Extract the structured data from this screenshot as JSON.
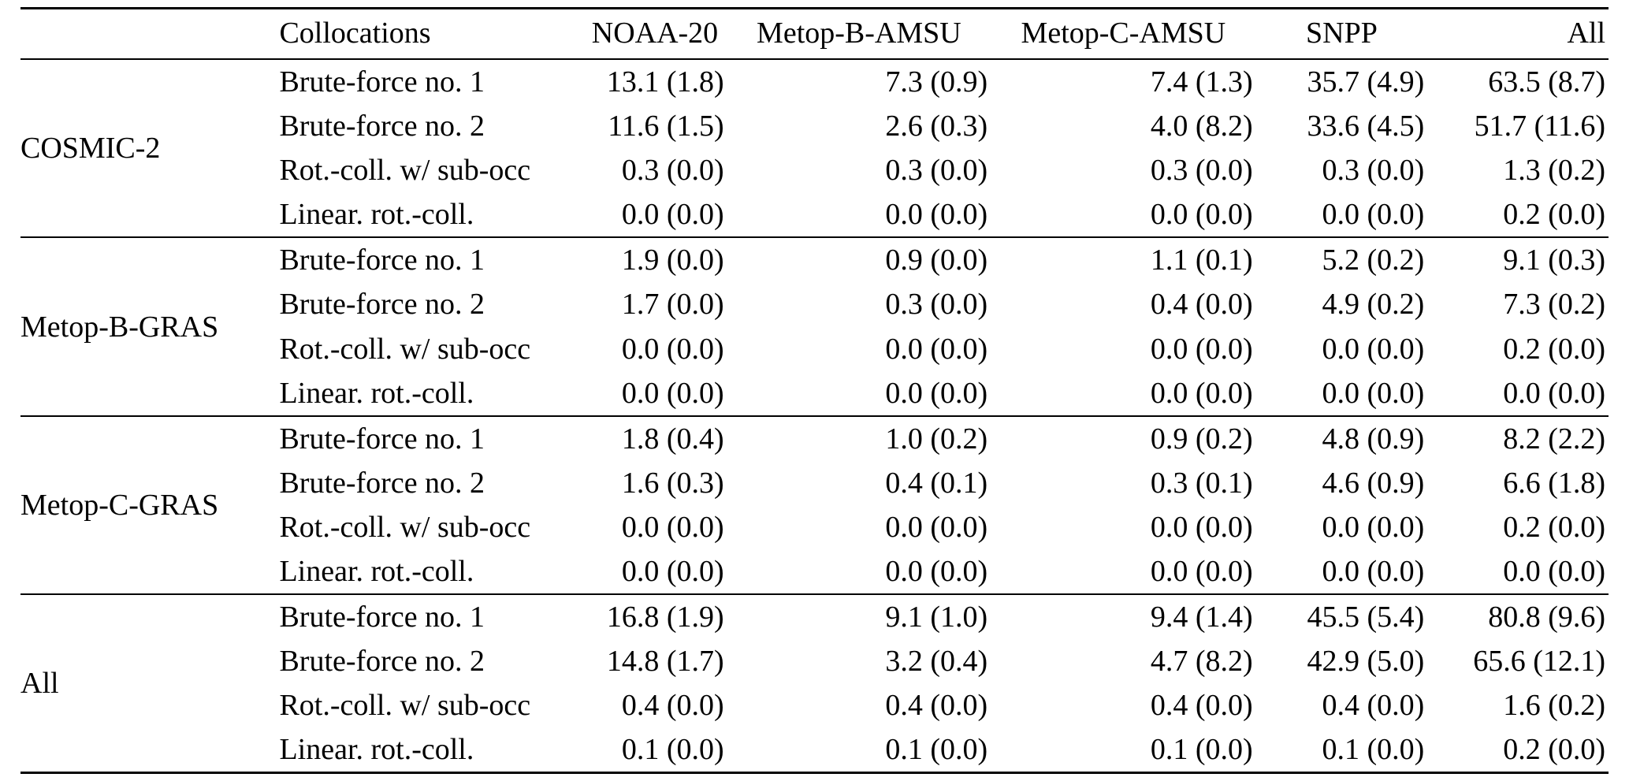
{
  "page": {
    "background": "#ffffff",
    "text_color": "#000000",
    "rule_color": "#000000"
  },
  "table": {
    "header": {
      "group_col": "",
      "method_col": "Collocations",
      "value_cols": [
        "NOAA-20",
        "Metop-B-AMSU",
        "Metop-C-AMSU",
        "SNPP",
        "All"
      ]
    },
    "groups": [
      {
        "name": "COSMIC-2",
        "rows": [
          {
            "method": "Brute-force no. 1",
            "values": [
              "13.1 (1.8)",
              "7.3 (0.9)",
              "7.4 (1.3)",
              "35.7 (4.9)",
              "63.5 (8.7)"
            ]
          },
          {
            "method": "Brute-force no. 2",
            "values": [
              "11.6 (1.5)",
              "2.6 (0.3)",
              "4.0 (8.2)",
              "33.6 (4.5)",
              "51.7 (11.6)"
            ]
          },
          {
            "method": "Rot.-coll. w/ sub-occ",
            "values": [
              "0.3 (0.0)",
              "0.3 (0.0)",
              "0.3 (0.0)",
              "0.3 (0.0)",
              "1.3 (0.2)"
            ]
          },
          {
            "method": "Linear. rot.-coll.",
            "values": [
              "0.0 (0.0)",
              "0.0 (0.0)",
              "0.0 (0.0)",
              "0.0 (0.0)",
              "0.2 (0.0)"
            ]
          }
        ]
      },
      {
        "name": "Metop-B-GRAS",
        "rows": [
          {
            "method": "Brute-force no. 1",
            "values": [
              "1.9 (0.0)",
              "0.9 (0.0)",
              "1.1 (0.1)",
              "5.2 (0.2)",
              "9.1 (0.3)"
            ]
          },
          {
            "method": "Brute-force no. 2",
            "values": [
              "1.7 (0.0)",
              "0.3 (0.0)",
              "0.4 (0.0)",
              "4.9 (0.2)",
              "7.3 (0.2)"
            ]
          },
          {
            "method": "Rot.-coll. w/ sub-occ",
            "values": [
              "0.0 (0.0)",
              "0.0 (0.0)",
              "0.0 (0.0)",
              "0.0 (0.0)",
              "0.2 (0.0)"
            ]
          },
          {
            "method": "Linear. rot.-coll.",
            "values": [
              "0.0 (0.0)",
              "0.0 (0.0)",
              "0.0 (0.0)",
              "0.0 (0.0)",
              "0.0 (0.0)"
            ]
          }
        ]
      },
      {
        "name": "Metop-C-GRAS",
        "rows": [
          {
            "method": "Brute-force no. 1",
            "values": [
              "1.8 (0.4)",
              "1.0 (0.2)",
              "0.9 (0.2)",
              "4.8 (0.9)",
              "8.2 (2.2)"
            ]
          },
          {
            "method": "Brute-force no. 2",
            "values": [
              "1.6 (0.3)",
              "0.4 (0.1)",
              "0.3 (0.1)",
              "4.6 (0.9)",
              "6.6 (1.8)"
            ]
          },
          {
            "method": "Rot.-coll. w/ sub-occ",
            "values": [
              "0.0 (0.0)",
              "0.0 (0.0)",
              "0.0 (0.0)",
              "0.0 (0.0)",
              "0.2 (0.0)"
            ]
          },
          {
            "method": "Linear. rot.-coll.",
            "values": [
              "0.0 (0.0)",
              "0.0 (0.0)",
              "0.0 (0.0)",
              "0.0 (0.0)",
              "0.0 (0.0)"
            ]
          }
        ]
      },
      {
        "name": "All",
        "rows": [
          {
            "method": "Brute-force no. 1",
            "values": [
              "16.8 (1.9)",
              "9.1 (1.0)",
              "9.4 (1.4)",
              "45.5 (5.4)",
              "80.8 (9.6)"
            ]
          },
          {
            "method": "Brute-force no. 2",
            "values": [
              "14.8 (1.7)",
              "3.2 (0.4)",
              "4.7 (8.2)",
              "42.9 (5.0)",
              "65.6 (12.1)"
            ]
          },
          {
            "method": "Rot.-coll. w/ sub-occ",
            "values": [
              "0.4 (0.0)",
              "0.4 (0.0)",
              "0.4 (0.0)",
              "0.4 (0.0)",
              "1.6 (0.2)"
            ]
          },
          {
            "method": "Linear. rot.-coll.",
            "values": [
              "0.1 (0.0)",
              "0.1 (0.0)",
              "0.1 (0.0)",
              "0.1 (0.0)",
              "0.2 (0.0)"
            ]
          }
        ]
      }
    ]
  },
  "chart_data": {
    "type": "table",
    "columns": [
      "",
      "Collocations",
      "NOAA-20",
      "Metop-B-AMSU",
      "Metop-C-AMSU",
      "SNPP",
      "All"
    ],
    "rows": [
      [
        "COSMIC-2",
        "Brute-force no. 1",
        "13.1 (1.8)",
        "7.3 (0.9)",
        "7.4 (1.3)",
        "35.7 (4.9)",
        "63.5 (8.7)"
      ],
      [
        "COSMIC-2",
        "Brute-force no. 2",
        "11.6 (1.5)",
        "2.6 (0.3)",
        "4.0 (8.2)",
        "33.6 (4.5)",
        "51.7 (11.6)"
      ],
      [
        "COSMIC-2",
        "Rot.-coll. w/ sub-occ",
        "0.3 (0.0)",
        "0.3 (0.0)",
        "0.3 (0.0)",
        "0.3 (0.0)",
        "1.3 (0.2)"
      ],
      [
        "COSMIC-2",
        "Linear. rot.-coll.",
        "0.0 (0.0)",
        "0.0 (0.0)",
        "0.0 (0.0)",
        "0.0 (0.0)",
        "0.2 (0.0)"
      ],
      [
        "Metop-B-GRAS",
        "Brute-force no. 1",
        "1.9 (0.0)",
        "0.9 (0.0)",
        "1.1 (0.1)",
        "5.2 (0.2)",
        "9.1 (0.3)"
      ],
      [
        "Metop-B-GRAS",
        "Brute-force no. 2",
        "1.7 (0.0)",
        "0.3 (0.0)",
        "0.4 (0.0)",
        "4.9 (0.2)",
        "7.3 (0.2)"
      ],
      [
        "Metop-B-GRAS",
        "Rot.-coll. w/ sub-occ",
        "0.0 (0.0)",
        "0.0 (0.0)",
        "0.0 (0.0)",
        "0.0 (0.0)",
        "0.2 (0.0)"
      ],
      [
        "Metop-B-GRAS",
        "Linear. rot.-coll.",
        "0.0 (0.0)",
        "0.0 (0.0)",
        "0.0 (0.0)",
        "0.0 (0.0)",
        "0.0 (0.0)"
      ],
      [
        "Metop-C-GRAS",
        "Brute-force no. 1",
        "1.8 (0.4)",
        "1.0 (0.2)",
        "0.9 (0.2)",
        "4.8 (0.9)",
        "8.2 (2.2)"
      ],
      [
        "Metop-C-GRAS",
        "Brute-force no. 2",
        "1.6 (0.3)",
        "0.4 (0.1)",
        "0.3 (0.1)",
        "4.6 (0.9)",
        "6.6 (1.8)"
      ],
      [
        "Metop-C-GRAS",
        "Rot.-coll. w/ sub-occ",
        "0.0 (0.0)",
        "0.0 (0.0)",
        "0.0 (0.0)",
        "0.0 (0.0)",
        "0.2 (0.0)"
      ],
      [
        "Metop-C-GRAS",
        "Linear. rot.-coll.",
        "0.0 (0.0)",
        "0.0 (0.0)",
        "0.0 (0.0)",
        "0.0 (0.0)",
        "0.0 (0.0)"
      ],
      [
        "All",
        "Brute-force no. 1",
        "16.8 (1.9)",
        "9.1 (1.0)",
        "9.4 (1.4)",
        "45.5 (5.4)",
        "80.8 (9.6)"
      ],
      [
        "All",
        "Brute-force no. 2",
        "14.8 (1.7)",
        "3.2 (0.4)",
        "4.7 (8.2)",
        "42.9 (5.0)",
        "65.6 (12.1)"
      ],
      [
        "All",
        "Rot.-coll. w/ sub-occ",
        "0.4 (0.0)",
        "0.4 (0.0)",
        "0.4 (0.0)",
        "0.4 (0.0)",
        "1.6 (0.2)"
      ],
      [
        "All",
        "Linear. rot.-coll.",
        "0.1 (0.0)",
        "0.1 (0.0)",
        "0.1 (0.0)",
        "0.1 (0.0)",
        "0.2 (0.0)"
      ]
    ]
  }
}
